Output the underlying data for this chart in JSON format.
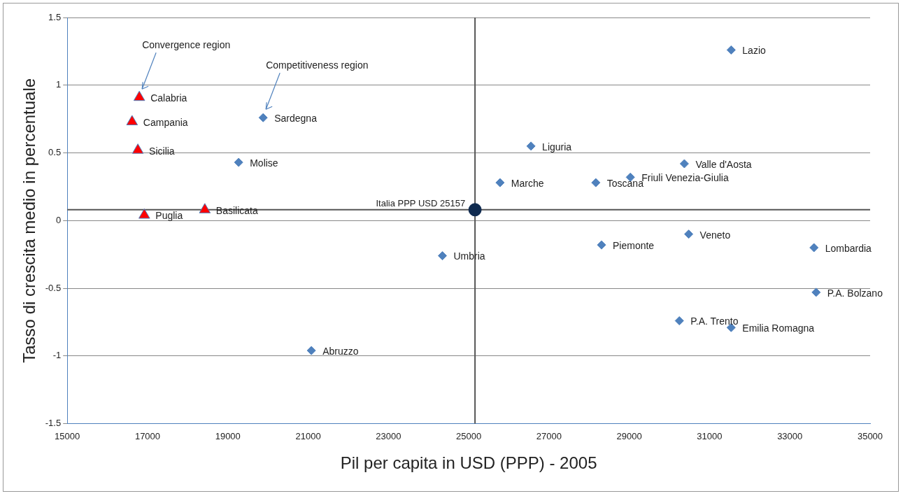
{
  "chart_data": {
    "type": "scatter",
    "xlabel": "Pil per capita in USD (PPP) - 2005",
    "ylabel": "Tasso di crescita medio in percentuale",
    "xlim": [
      15000,
      35000
    ],
    "xticks": [
      15000,
      17000,
      19000,
      21000,
      23000,
      25000,
      27000,
      29000,
      31000,
      33000,
      35000
    ],
    "ylim": [
      -1.5,
      1.5
    ],
    "yticks": [
      -1.5,
      -1,
      -0.5,
      0,
      0.5,
      1,
      1.5
    ],
    "grid": "y",
    "legend": false,
    "series": [
      {
        "color": "#4f81bd",
        "marker": "diamond",
        "x": [
          19879,
          19269,
          21081,
          24345,
          25780,
          26551,
          28166,
          28309,
          29027,
          30372,
          30480,
          30247,
          31538,
          31538,
          33601,
          33655
        ],
        "values": [
          0.76,
          0.43,
          -0.96,
          -0.26,
          0.28,
          0.55,
          0.28,
          -0.18,
          0.32,
          0.42,
          -0.1,
          -0.74,
          -0.79,
          1.26,
          -0.2,
          -0.53
        ]
      },
      {
        "color": "#ff0000",
        "marker": "triangle",
        "x": [
          16794,
          16614,
          16758,
          16919,
          18426
        ],
        "values": [
          0.91,
          0.73,
          0.52,
          0.04,
          0.08
        ]
      },
      {
        "color": "#0f2a4f",
        "marker": "circle",
        "x": [
          25157
        ],
        "values": [
          0.08
        ]
      }
    ],
    "ref_lines": [
      {
        "axis": "x",
        "value": 25157
      },
      {
        "axis": "y",
        "value": 0.08,
        "label": "Italia PPP USD 25157"
      }
    ],
    "annotations": [
      {
        "text": "Sardegna",
        "x": 19879,
        "y": 0.76
      },
      {
        "text": "Molise",
        "x": 19269,
        "y": 0.43
      },
      {
        "text": "Abruzzo",
        "x": 21081,
        "y": -0.96
      },
      {
        "text": "Umbria",
        "x": 24345,
        "y": -0.26
      },
      {
        "text": "Marche",
        "x": 25780,
        "y": 0.28
      },
      {
        "text": "Liguria",
        "x": 26551,
        "y": 0.55
      },
      {
        "text": "Toscana",
        "x": 28166,
        "y": 0.28
      },
      {
        "text": "Piemonte",
        "x": 28309,
        "y": -0.18
      },
      {
        "text": "Friuli Venezia-Giulia",
        "x": 29027,
        "y": 0.32
      },
      {
        "text": "Valle d'Aosta",
        "x": 30372,
        "y": 0.42
      },
      {
        "text": "Veneto",
        "x": 30480,
        "y": -0.1
      },
      {
        "text": "P.A. Trento",
        "x": 30247,
        "y": -0.74
      },
      {
        "text": "Emilia Romagna",
        "x": 31538,
        "y": -0.79
      },
      {
        "text": "Lazio",
        "x": 31538,
        "y": 1.26
      },
      {
        "text": "Lombardia",
        "x": 33601,
        "y": -0.2
      },
      {
        "text": "P.A. Bolzano",
        "x": 33655,
        "y": -0.53
      },
      {
        "text": "Calabria",
        "x": 16794,
        "y": 0.91
      },
      {
        "text": "Campania",
        "x": 16614,
        "y": 0.73
      },
      {
        "text": "Sicilia",
        "x": 16758,
        "y": 0.52
      },
      {
        "text": "Puglia",
        "x": 16919,
        "y": 0.04
      },
      {
        "text": "Basilicata",
        "x": 18426,
        "y": 0.08
      },
      "Convergence region",
      "Competitiveness region"
    ]
  }
}
